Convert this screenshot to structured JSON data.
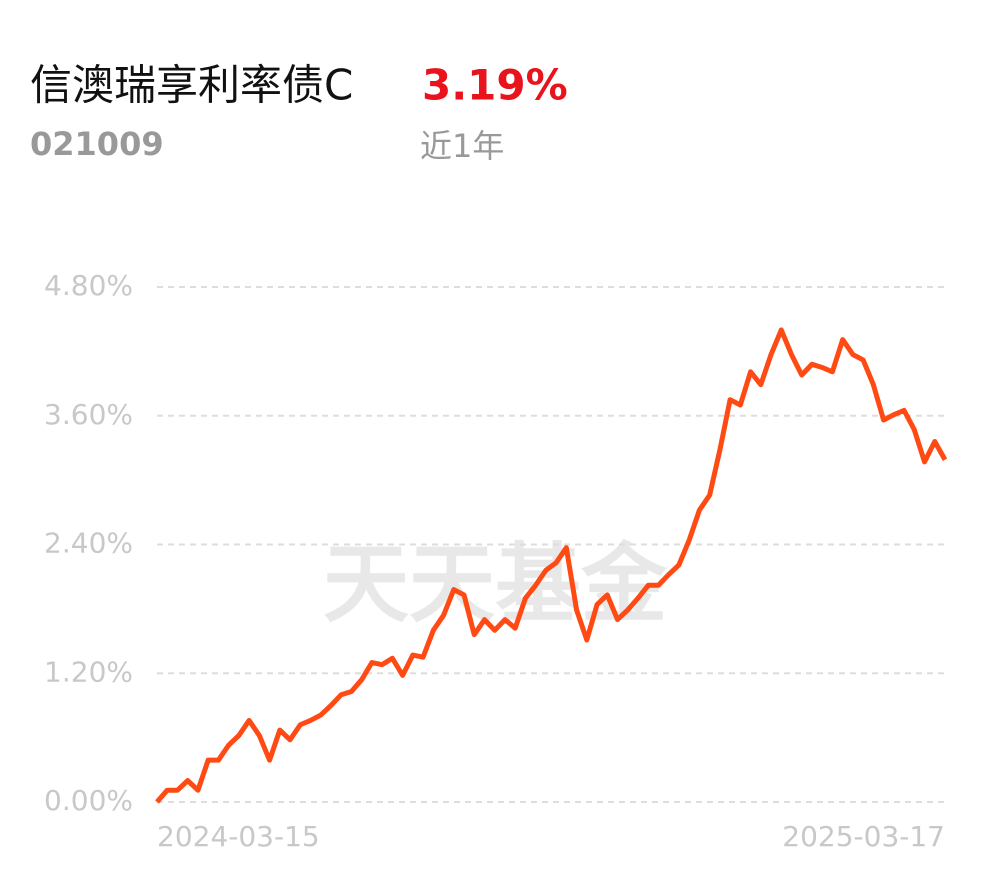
{
  "header": {
    "title": "信澳瑞享利率债C",
    "return": "3.19%",
    "code": "021009",
    "period": "近1年"
  },
  "chart_data": {
    "type": "line",
    "watermark": "天天基金",
    "categories": [
      "2024-03-15",
      null,
      null,
      null,
      null,
      null,
      null,
      null,
      null,
      null,
      null,
      null,
      null,
      null,
      null,
      null,
      null,
      null,
      null,
      null,
      null,
      null,
      null,
      null,
      null,
      null,
      null,
      null,
      null,
      null,
      null,
      null,
      null,
      null,
      null,
      null,
      null,
      null,
      null,
      null,
      null,
      null,
      null,
      null,
      null,
      null,
      null,
      null,
      null,
      null,
      null,
      null,
      null,
      null,
      null,
      null,
      null,
      null,
      null,
      null,
      null,
      null,
      null,
      null,
      null,
      null,
      null,
      null,
      null,
      null,
      null,
      null,
      null,
      null,
      null,
      null,
      null,
      "2025-03-17"
    ],
    "series": [
      {
        "color": "#ff4a14",
        "values": [
          0,
          0.11,
          0.11,
          0.2,
          0.11,
          0.39,
          0.39,
          0.53,
          0.62,
          0.76,
          0.62,
          0.39,
          0.67,
          0.58,
          0.72,
          0.76,
          0.81,
          0.9,
          1.0,
          1.03,
          1.14,
          1.3,
          1.28,
          1.34,
          1.18,
          1.37,
          1.35,
          1.6,
          1.74,
          1.98,
          1.93,
          1.56,
          1.7,
          1.6,
          1.7,
          1.62,
          1.9,
          2.02,
          2.16,
          2.23,
          2.37,
          1.79,
          1.51,
          1.84,
          1.93,
          1.7,
          1.79,
          1.9,
          2.02,
          2.02,
          2.12,
          2.21,
          2.44,
          2.72,
          2.86,
          3.28,
          3.75,
          3.7,
          4.01,
          3.89,
          4.17,
          4.4,
          4.17,
          3.98,
          4.08,
          4.05,
          4.01,
          4.31,
          4.17,
          4.12,
          3.89,
          3.56,
          3.61,
          3.65,
          3.47,
          3.17,
          3.36,
          3.19
        ]
      }
    ],
    "ylim": [
      0,
      4.8
    ],
    "yticks": [
      {
        "value": 0,
        "label": "0.00%"
      },
      {
        "value": 1.2,
        "label": "1.20%"
      },
      {
        "value": 2.4,
        "label": "2.40%"
      },
      {
        "value": 3.6,
        "label": "3.60%"
      },
      {
        "value": 4.8,
        "label": "4.80%"
      }
    ],
    "grid": true
  }
}
